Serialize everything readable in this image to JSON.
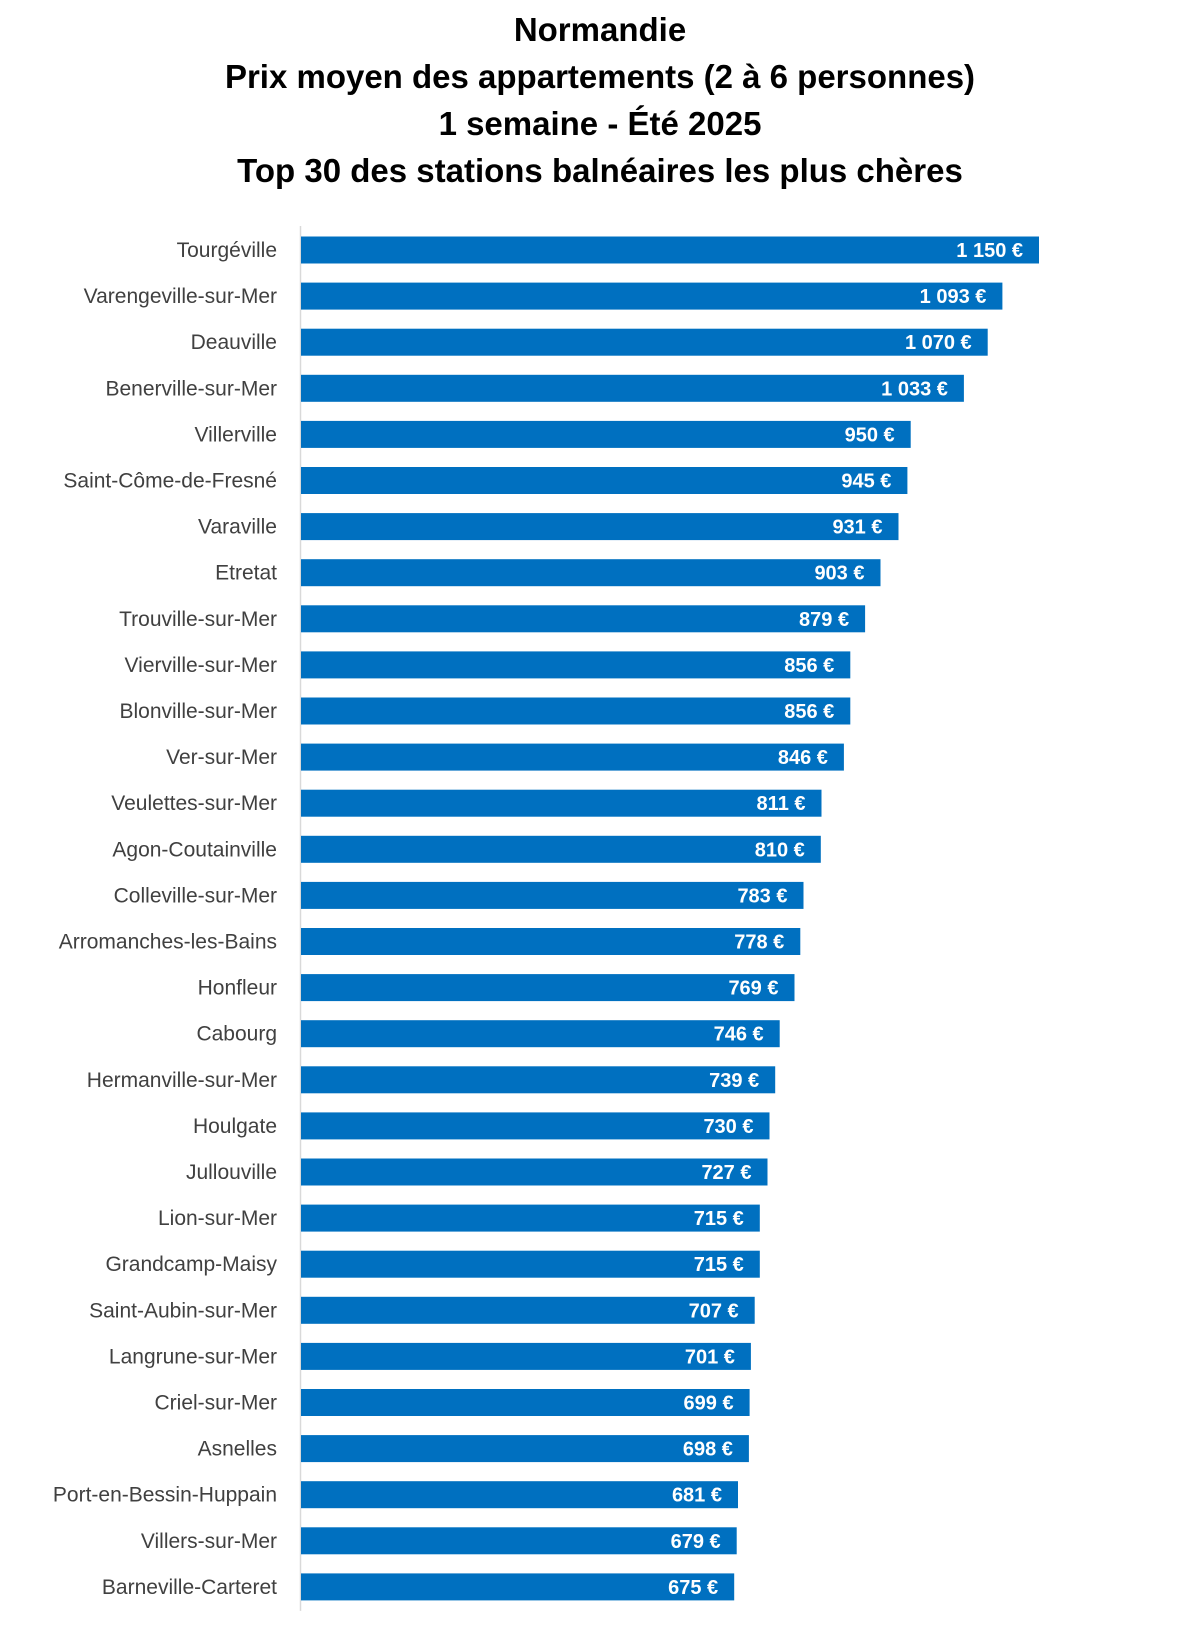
{
  "title_lines": [
    "Normandie",
    "Prix moyen des appartements (2 à 6 personnes)",
    "1 semaine - Été 2025",
    "Top 30 des stations balnéaires les plus chères"
  ],
  "colors": {
    "bar": "#0070C0",
    "label_text": "#404040",
    "axis": "#D9D9D9",
    "data_label": "#FFFFFF"
  },
  "chart_data": {
    "type": "bar",
    "orientation": "horizontal",
    "title": "Normandie Prix moyen des appartements (2 à 6 personnes) 1 semaine - Été 2025 Top 30 des stations balnéaires les plus chères",
    "xlabel": "",
    "ylabel": "",
    "xlim": [
      0,
      1150
    ],
    "grid": false,
    "legend": "none",
    "categories": [
      "Tourgéville",
      "Varengeville-sur-Mer",
      "Deauville",
      "Benerville-sur-Mer",
      "Villerville",
      "Saint-Côme-de-Fresné",
      "Varaville",
      "Etretat",
      "Trouville-sur-Mer",
      "Vierville-sur-Mer",
      "Blonville-sur-Mer",
      "Ver-sur-Mer",
      "Veulettes-sur-Mer",
      "Agon-Coutainville",
      "Colleville-sur-Mer",
      "Arromanches-les-Bains",
      "Honfleur",
      "Cabourg",
      "Hermanville-sur-Mer",
      "Houlgate",
      "Jullouville",
      "Lion-sur-Mer",
      "Grandcamp-Maisy",
      "Saint-Aubin-sur-Mer",
      "Langrune-sur-Mer",
      "Criel-sur-Mer",
      "Asnelles",
      "Port-en-Bessin-Huppain",
      "Villers-sur-Mer",
      "Barneville-Carteret"
    ],
    "values": [
      1150,
      1093,
      1070,
      1033,
      950,
      945,
      931,
      903,
      879,
      856,
      856,
      846,
      811,
      810,
      783,
      778,
      769,
      746,
      739,
      730,
      727,
      715,
      715,
      707,
      701,
      699,
      698,
      681,
      679,
      675
    ],
    "data_labels": [
      "1 150 €",
      "1 093 €",
      "1 070 €",
      "1 033 €",
      "950 €",
      "945 €",
      "931 €",
      "903 €",
      "879 €",
      "856 €",
      "856 €",
      "846 €",
      "811 €",
      "810 €",
      "783 €",
      "778 €",
      "769 €",
      "746 €",
      "739 €",
      "730 €",
      "727 €",
      "715 €",
      "715 €",
      "707 €",
      "701 €",
      "699 €",
      "698 €",
      "681 €",
      "679 €",
      "675 €"
    ]
  }
}
